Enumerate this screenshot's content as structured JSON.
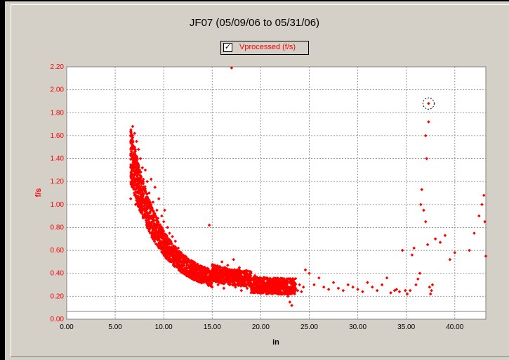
{
  "window": {
    "title": "JF07 (05/09/06 to 05/31/06)"
  },
  "legend": {
    "label": "Vprocessed (f/s)",
    "checked": true,
    "color": "#ff0000"
  },
  "colors": {
    "series": "#ff0000",
    "background": "#d4d0c8",
    "plot_background": "#ffffff",
    "reference_line": "#808080"
  },
  "chart_data": {
    "type": "scatter",
    "title": "JF07 (05/09/06 to 05/31/06)",
    "xlabel": "in",
    "ylabel": "f/s",
    "xlim": [
      0,
      43.2
    ],
    "ylim": [
      0,
      2.2
    ],
    "x_ticks": [
      "0.00",
      "5.00",
      "10.00",
      "15.00",
      "20.00",
      "25.00",
      "30.00",
      "35.00",
      "40.00"
    ],
    "y_ticks": [
      "0.00",
      "0.20",
      "0.40",
      "0.60",
      "0.80",
      "1.00",
      "1.20",
      "1.40",
      "1.60",
      "1.80",
      "2.00",
      "2.20"
    ],
    "grid": true,
    "legend_position": "top-center",
    "reference_line_y": 0.07,
    "highlighted_point": {
      "x": 37.3,
      "y": 1.88
    },
    "series": [
      {
        "name": "Vprocessed (f/s)",
        "color": "#ff0000",
        "points": [
          [
            6.6,
            1.05
          ],
          [
            6.7,
            1.25
          ],
          [
            6.7,
            1.45
          ],
          [
            6.8,
            1.6
          ],
          [
            6.8,
            1.68
          ],
          [
            6.9,
            1.15
          ],
          [
            6.9,
            1.38
          ],
          [
            7.0,
            1.5
          ],
          [
            7.0,
            1.62
          ],
          [
            7.1,
            1.3
          ],
          [
            7.1,
            1.0
          ],
          [
            7.2,
            1.42
          ],
          [
            7.2,
            1.55
          ],
          [
            7.3,
            1.2
          ],
          [
            7.3,
            1.35
          ],
          [
            7.4,
            1.48
          ],
          [
            7.5,
            1.1
          ],
          [
            7.5,
            1.28
          ],
          [
            7.6,
            1.4
          ],
          [
            7.7,
            1.18
          ],
          [
            7.8,
            1.05
          ],
          [
            7.8,
            1.32
          ],
          [
            7.9,
            1.22
          ],
          [
            8.0,
            0.95
          ],
          [
            8.0,
            1.15
          ],
          [
            8.1,
            1.3
          ],
          [
            8.2,
            1.05
          ],
          [
            8.3,
            1.2
          ],
          [
            8.4,
            0.9
          ],
          [
            8.5,
            1.1
          ],
          [
            8.6,
            0.98
          ],
          [
            8.7,
            1.22
          ],
          [
            8.8,
            0.85
          ],
          [
            8.9,
            1.02
          ],
          [
            9.0,
            0.92
          ],
          [
            9.1,
            1.15
          ],
          [
            9.2,
            0.8
          ],
          [
            9.3,
            0.95
          ],
          [
            9.4,
            0.88
          ],
          [
            9.5,
            1.05
          ],
          [
            9.6,
            0.78
          ],
          [
            9.8,
            0.9
          ],
          [
            9.9,
            0.72
          ],
          [
            10.0,
            0.85
          ],
          [
            10.1,
            0.95
          ],
          [
            10.2,
            0.7
          ],
          [
            10.4,
            0.8
          ],
          [
            10.5,
            0.66
          ],
          [
            10.6,
            0.75
          ],
          [
            10.8,
            0.62
          ],
          [
            10.9,
            0.72
          ],
          [
            11.0,
            0.58
          ],
          [
            11.2,
            0.68
          ],
          [
            11.3,
            0.55
          ],
          [
            11.5,
            0.62
          ],
          [
            11.6,
            0.5
          ],
          [
            11.8,
            0.58
          ],
          [
            12.0,
            0.48
          ],
          [
            12.1,
            0.55
          ],
          [
            12.3,
            0.45
          ],
          [
            12.5,
            0.52
          ],
          [
            12.7,
            0.42
          ],
          [
            12.9,
            0.5
          ],
          [
            13.0,
            0.4
          ],
          [
            13.2,
            0.47
          ],
          [
            13.4,
            0.38
          ],
          [
            13.6,
            0.45
          ],
          [
            13.8,
            0.35
          ],
          [
            14.0,
            0.42
          ],
          [
            14.2,
            0.33
          ],
          [
            14.4,
            0.4
          ],
          [
            14.6,
            0.3
          ],
          [
            14.8,
            0.38
          ],
          [
            15.0,
            0.28
          ],
          [
            15.2,
            0.36
          ],
          [
            15.4,
            0.45
          ],
          [
            15.6,
            0.3
          ],
          [
            15.8,
            0.38
          ],
          [
            16.0,
            0.5
          ],
          [
            16.2,
            0.27
          ],
          [
            16.4,
            0.35
          ],
          [
            16.6,
            0.47
          ],
          [
            16.8,
            0.3
          ],
          [
            17.0,
            0.4
          ],
          [
            17.2,
            0.52
          ],
          [
            17.4,
            0.28
          ],
          [
            17.6,
            0.37
          ],
          [
            17.8,
            0.45
          ],
          [
            18.0,
            0.25
          ],
          [
            18.2,
            0.33
          ],
          [
            18.4,
            0.42
          ],
          [
            18.6,
            0.27
          ],
          [
            18.8,
            0.36
          ],
          [
            19.0,
            0.3
          ],
          [
            19.2,
            0.24
          ],
          [
            19.4,
            0.38
          ],
          [
            19.6,
            0.28
          ],
          [
            19.8,
            0.33
          ],
          [
            20.0,
            0.25
          ],
          [
            20.2,
            0.35
          ],
          [
            20.4,
            0.3
          ],
          [
            20.6,
            0.22
          ],
          [
            20.8,
            0.32
          ],
          [
            21.0,
            0.27
          ],
          [
            21.2,
            0.3
          ],
          [
            21.4,
            0.24
          ],
          [
            21.6,
            0.28
          ],
          [
            21.8,
            0.22
          ],
          [
            22.0,
            0.26
          ],
          [
            22.2,
            0.3
          ],
          [
            22.4,
            0.23
          ],
          [
            22.6,
            0.27
          ],
          [
            22.8,
            0.2
          ],
          [
            23.0,
            0.15
          ],
          [
            23.2,
            0.12
          ],
          [
            14.7,
            0.82
          ],
          [
            17.0,
            2.19
          ],
          [
            23.6,
            0.27
          ],
          [
            23.8,
            0.25
          ],
          [
            24.0,
            0.3
          ],
          [
            24.2,
            0.24
          ],
          [
            24.4,
            0.28
          ],
          [
            24.6,
            0.43
          ],
          [
            25.0,
            0.4
          ],
          [
            25.5,
            0.3
          ],
          [
            26.0,
            0.36
          ],
          [
            26.5,
            0.28
          ],
          [
            27.0,
            0.26
          ],
          [
            27.5,
            0.32
          ],
          [
            28.0,
            0.27
          ],
          [
            28.5,
            0.25
          ],
          [
            29.0,
            0.3
          ],
          [
            29.5,
            0.28
          ],
          [
            30.0,
            0.26
          ],
          [
            30.5,
            0.24
          ],
          [
            31.0,
            0.32
          ],
          [
            31.5,
            0.28
          ],
          [
            32.0,
            0.25
          ],
          [
            32.5,
            0.3
          ],
          [
            33.0,
            0.36
          ],
          [
            33.4,
            0.23
          ],
          [
            33.8,
            0.25
          ],
          [
            34.0,
            0.26
          ],
          [
            34.3,
            0.24
          ],
          [
            34.6,
            0.6
          ],
          [
            34.9,
            0.25
          ],
          [
            35.1,
            0.22
          ],
          [
            35.4,
            0.25
          ],
          [
            35.6,
            0.56
          ],
          [
            35.8,
            0.62
          ],
          [
            36.0,
            0.3
          ],
          [
            36.2,
            0.35
          ],
          [
            36.4,
            0.4
          ],
          [
            36.5,
            1.0
          ],
          [
            36.6,
            1.13
          ],
          [
            36.8,
            0.95
          ],
          [
            37.0,
            0.85
          ],
          [
            37.0,
            1.6
          ],
          [
            37.1,
            1.4
          ],
          [
            37.2,
            0.65
          ],
          [
            37.3,
            1.88
          ],
          [
            37.3,
            1.72
          ],
          [
            37.4,
            0.28
          ],
          [
            37.5,
            0.22
          ],
          [
            37.6,
            0.25
          ],
          [
            37.7,
            0.3
          ],
          [
            38.0,
            0.7
          ],
          [
            38.5,
            0.67
          ],
          [
            39.0,
            0.73
          ],
          [
            39.5,
            0.52
          ],
          [
            40.0,
            0.58
          ],
          [
            41.5,
            0.6
          ],
          [
            42.0,
            0.75
          ],
          [
            42.5,
            0.9
          ],
          [
            42.8,
            1.0
          ],
          [
            43.0,
            1.08
          ],
          [
            43.1,
            0.85
          ],
          [
            43.2,
            0.55
          ]
        ]
      }
    ]
  }
}
